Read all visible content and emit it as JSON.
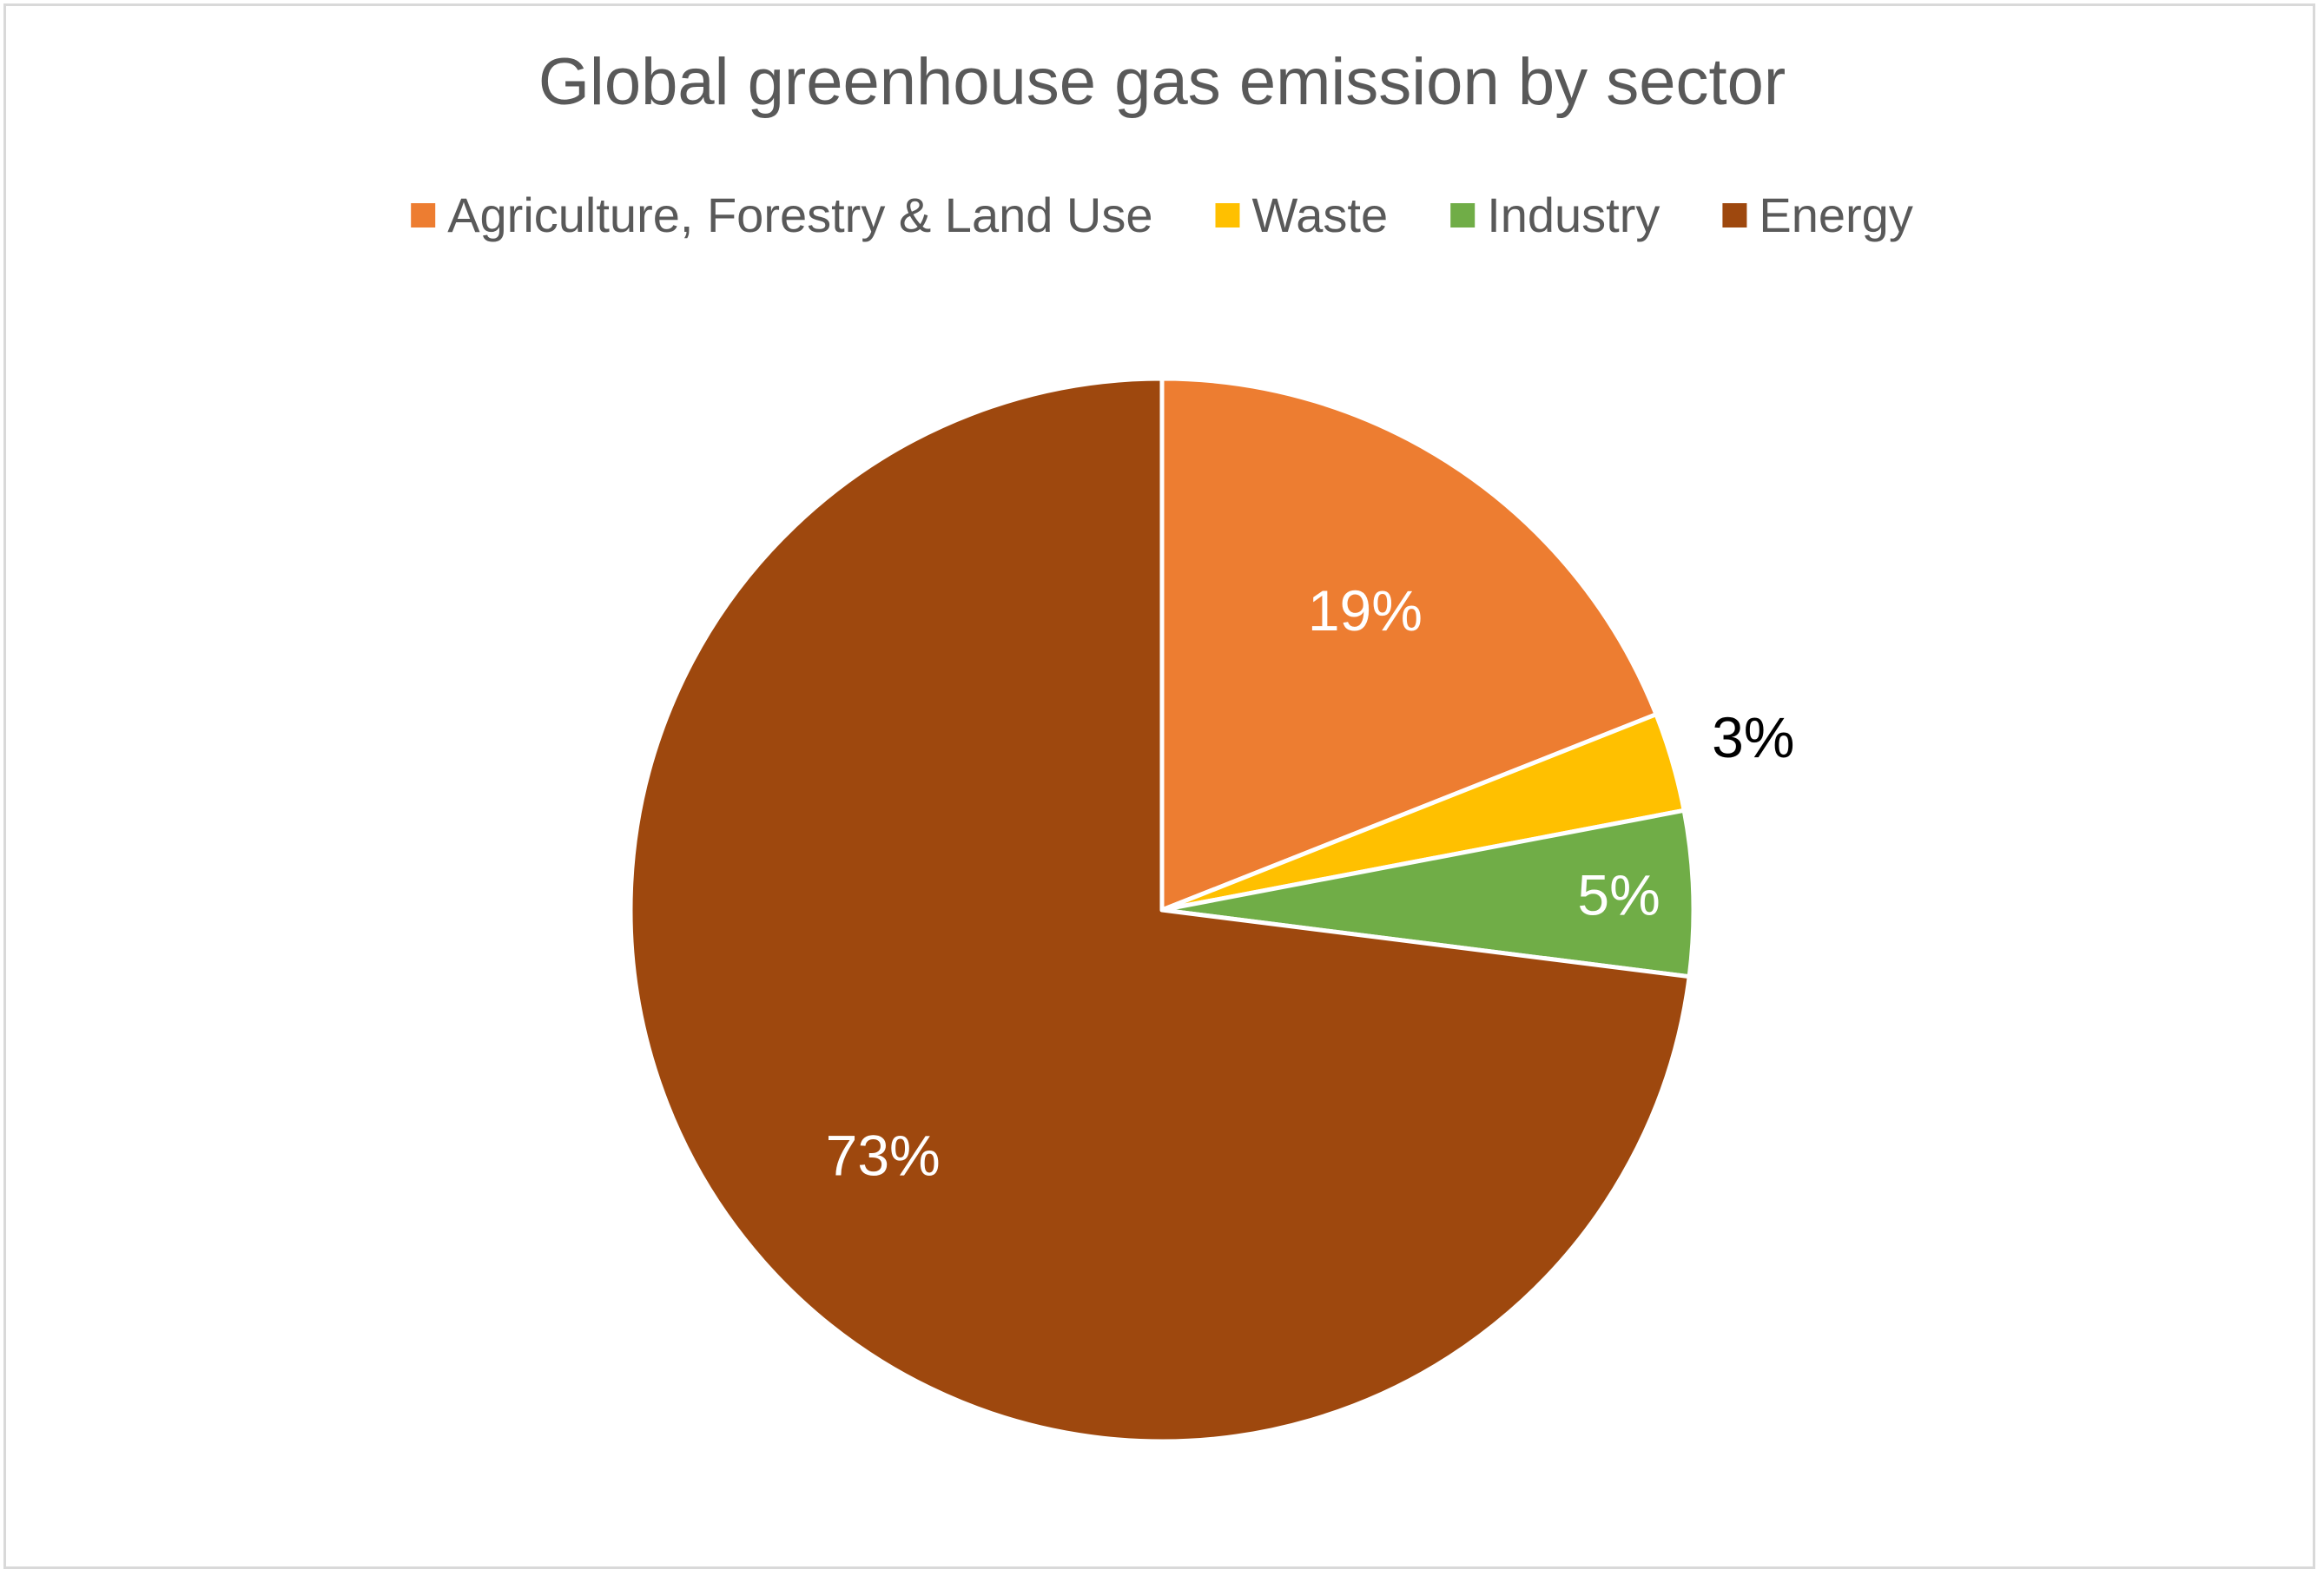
{
  "chart_data": {
    "type": "pie",
    "title": "Global greenhouse gas emission by sector",
    "legend_position": "top",
    "start_angle_deg": 0,
    "direction": "clockwise",
    "slices": [
      {
        "name": "Agriculture, Forestry & Land Use",
        "value": 19,
        "label": "19%",
        "color": "#ED7D31",
        "label_color": "#FFFFFF",
        "label_placement": "inside"
      },
      {
        "name": "Waste",
        "value": 3,
        "label": "3%",
        "color": "#FFC000",
        "label_color": "#000000",
        "label_placement": "outside"
      },
      {
        "name": "Industry",
        "value": 5,
        "label": "5%",
        "color": "#70AD47",
        "label_color": "#FFFFFF",
        "label_placement": "inside"
      },
      {
        "name": "Energy",
        "value": 73,
        "label": "73%",
        "color": "#9E480E",
        "label_color": "#FFFFFF",
        "label_placement": "inside"
      }
    ],
    "colors": {
      "title": "#595959",
      "legend_text": "#595959",
      "slice_border": "#FFFFFF",
      "frame_border": "#D9D9D9"
    }
  }
}
